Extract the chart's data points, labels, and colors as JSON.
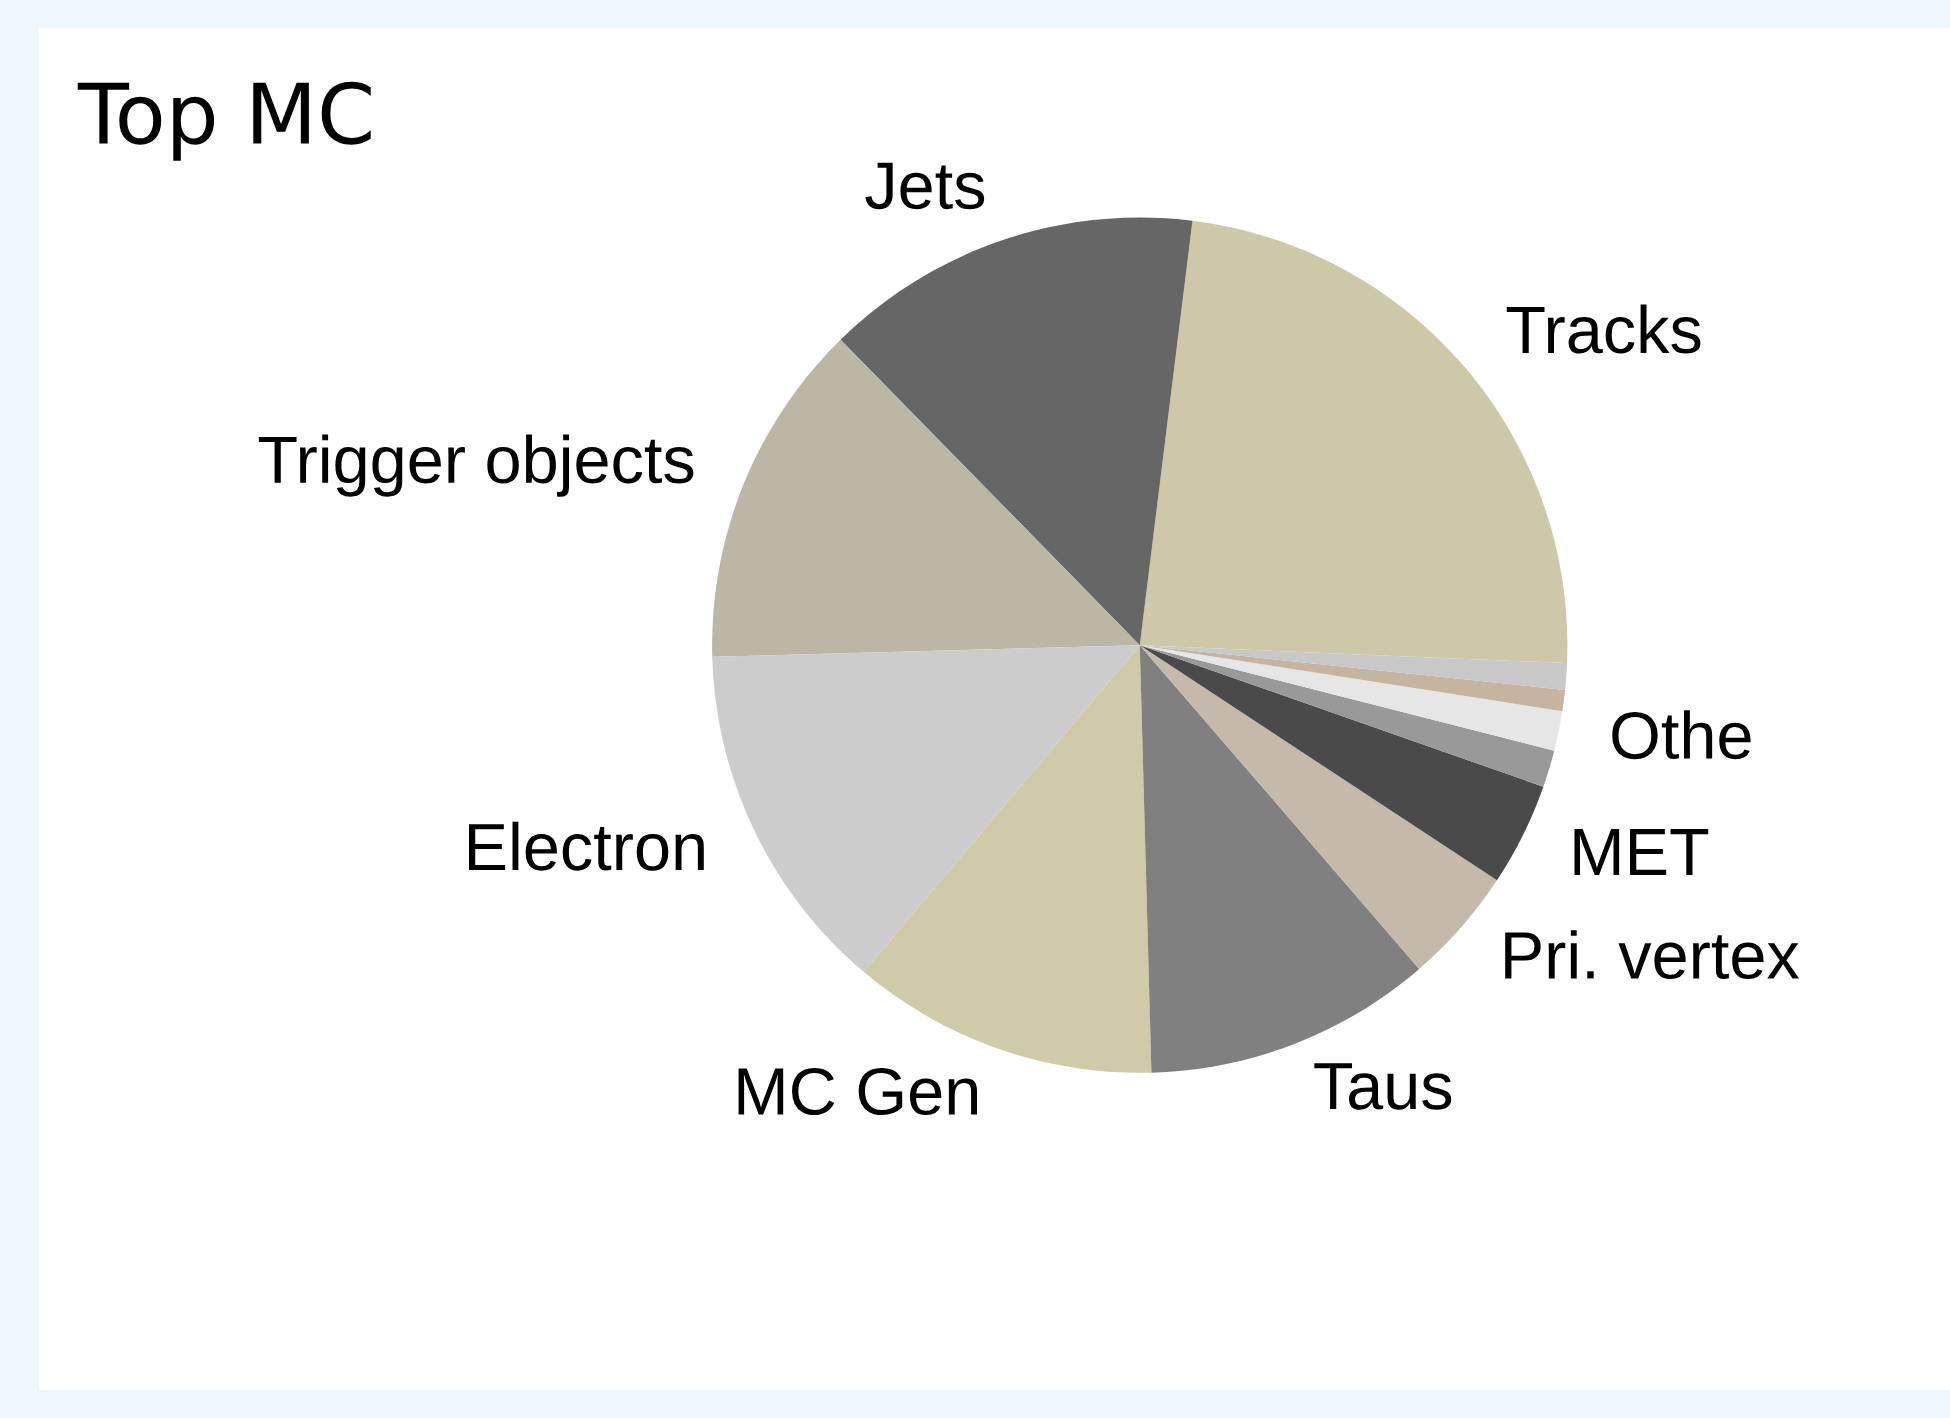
{
  "chart_data": {
    "type": "pie",
    "title": "Top MC",
    "categories": [
      "Tracks",
      "Jets",
      "Trigger objects",
      "Electron",
      "MC Gen",
      "Taus",
      "Pri. vertex",
      "MET",
      null,
      "Othe",
      null,
      null
    ],
    "values": [
      23.7,
      14.3,
      13.1,
      13.4,
      11.6,
      10.9,
      4.4,
      3.9,
      1.4,
      1.5,
      0.8,
      1.0
    ],
    "colors": [
      "#cdc8a8",
      "#666666",
      "#bcb6a4",
      "#cccccc",
      "#cfcaa8",
      "#808080",
      "#c4b9ab",
      "#4a4a4a",
      "#999999",
      "#e6e6e6",
      "#c4b4a0",
      "#c8c8c8"
    ]
  }
}
